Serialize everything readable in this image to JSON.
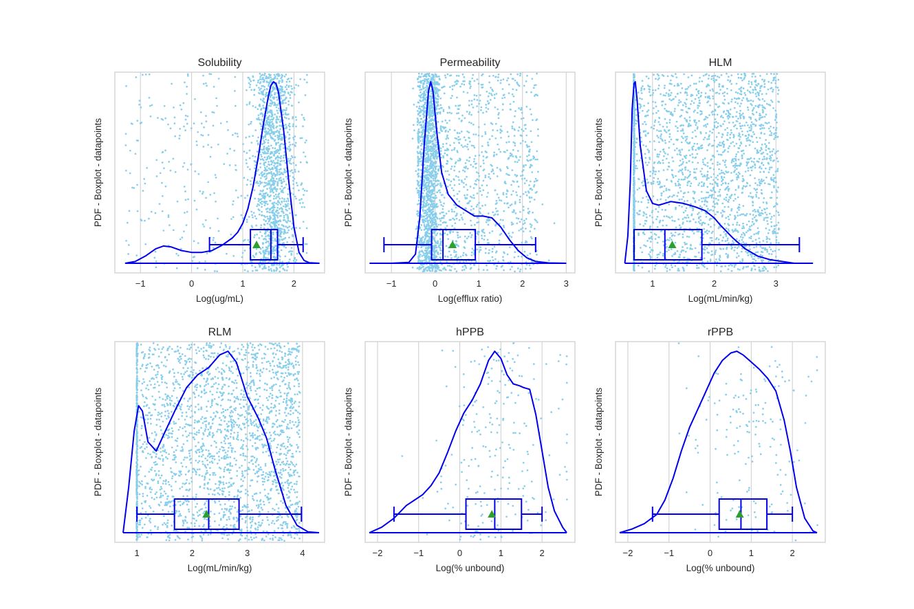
{
  "figure": {
    "background": "#ffffff"
  },
  "style": {
    "curve_color": "#0000ee",
    "box_color": "#0000ee",
    "points_color": "#87ceeb",
    "mean_marker_color": "#2ca02c",
    "grid_color": "#cccccc",
    "frame_color": "#cccccc"
  },
  "chart_data": [
    {
      "type": "density-box-strip",
      "title": "Solubility",
      "xlabel": "Log(ug/mL)",
      "ylabel": "PDF - Boxplot - datapoints",
      "xlim": [
        -1.5,
        2.6
      ],
      "xticks": [
        -1,
        0,
        1,
        2
      ],
      "xtick_labels": [
        "−1",
        "0",
        "1",
        "2"
      ],
      "points": {
        "n": 1700,
        "model": "skew_high",
        "center": 1.6,
        "spread": 0.45,
        "tail_min": -1.3,
        "tail_max": 2.25,
        "tail_frac": 0.2,
        "clip": [
          -1.3,
          2.25
        ]
      },
      "box": {
        "whisker_low": 0.35,
        "q1": 1.15,
        "median": 1.55,
        "q3": 1.68,
        "whisker_high": 2.18,
        "mean": 1.27
      },
      "pdf": {
        "x": [
          -1.3,
          -1.1,
          -0.9,
          -0.7,
          -0.55,
          -0.4,
          -0.2,
          0.0,
          0.2,
          0.4,
          0.6,
          0.8,
          0.9,
          1.0,
          1.1,
          1.2,
          1.3,
          1.4,
          1.5,
          1.55,
          1.6,
          1.65,
          1.7,
          1.8,
          1.9,
          2.0,
          2.1,
          2.2,
          2.3,
          2.5
        ],
        "y": [
          0.0,
          0.01,
          0.04,
          0.08,
          0.095,
          0.09,
          0.07,
          0.06,
          0.06,
          0.07,
          0.1,
          0.14,
          0.17,
          0.22,
          0.3,
          0.42,
          0.58,
          0.76,
          0.92,
          0.98,
          1.0,
          0.99,
          0.94,
          0.73,
          0.45,
          0.2,
          0.06,
          0.015,
          0.003,
          0.0
        ]
      }
    },
    {
      "type": "density-box-strip",
      "title": "Permeability",
      "xlabel": "Log(efflux ratio)",
      "ylabel": "PDF - Boxplot - datapoints",
      "xlim": [
        -1.6,
        3.2
      ],
      "xticks": [
        -1,
        0,
        1,
        2,
        3
      ],
      "xtick_labels": [
        "−1",
        "0",
        "1",
        "2",
        "3"
      ],
      "points": {
        "n": 2600,
        "model": "peak_low",
        "center": -0.12,
        "spread": 0.12,
        "tail_min": -0.4,
        "tail_max": 2.35,
        "tail_frac": 0.55,
        "clip": [
          -1.2,
          2.8
        ]
      },
      "box": {
        "whisker_low": -1.17,
        "q1": -0.08,
        "median": 0.18,
        "q3": 0.92,
        "whisker_high": 2.3,
        "mean": 0.4
      },
      "pdf": {
        "x": [
          -1.5,
          -1.0,
          -0.6,
          -0.45,
          -0.35,
          -0.25,
          -0.15,
          -0.1,
          -0.05,
          0.05,
          0.15,
          0.3,
          0.5,
          0.7,
          0.9,
          1.1,
          1.3,
          1.5,
          1.7,
          1.9,
          2.1,
          2.3,
          2.6,
          3.0
        ],
        "y": [
          0.0,
          0.0,
          0.005,
          0.05,
          0.25,
          0.65,
          0.95,
          1.0,
          0.95,
          0.7,
          0.5,
          0.38,
          0.32,
          0.29,
          0.26,
          0.26,
          0.25,
          0.2,
          0.13,
          0.07,
          0.03,
          0.01,
          0.002,
          0.0
        ]
      }
    },
    {
      "type": "density-box-strip",
      "title": "HLM",
      "xlabel": "Log(mL/min/kg)",
      "ylabel": "PDF - Boxplot - datapoints",
      "xlim": [
        0.4,
        3.8
      ],
      "xticks": [
        1,
        2,
        3
      ],
      "xtick_labels": [
        "1",
        "2",
        "3"
      ],
      "points": {
        "n": 2600,
        "model": "wall_low",
        "wall": 0.7,
        "wall_frac": 0.22,
        "tail_min": 0.7,
        "tail_max": 3.05,
        "clip": [
          0.7,
          3.4
        ]
      },
      "box": {
        "whisker_low": 0.7,
        "q1": 0.7,
        "median": 1.2,
        "q3": 1.8,
        "whisker_high": 3.38,
        "mean": 1.32
      },
      "pdf": {
        "x": [
          0.55,
          0.6,
          0.64,
          0.67,
          0.7,
          0.72,
          0.75,
          0.8,
          0.9,
          1.0,
          1.1,
          1.3,
          1.5,
          1.7,
          1.85,
          2.0,
          2.1,
          2.3,
          2.5,
          2.7,
          2.9,
          3.1,
          3.3,
          3.6
        ],
        "y": [
          0.0,
          0.15,
          0.45,
          0.85,
          0.99,
          1.0,
          0.9,
          0.65,
          0.4,
          0.33,
          0.32,
          0.34,
          0.33,
          0.31,
          0.29,
          0.25,
          0.21,
          0.14,
          0.08,
          0.04,
          0.02,
          0.01,
          0.0,
          0.0
        ]
      }
    },
    {
      "type": "density-box-strip",
      "title": "RLM",
      "xlabel": "Log(mL/min/kg)",
      "ylabel": "PDF - Boxplot - datapoints",
      "xlim": [
        0.6,
        4.4
      ],
      "xticks": [
        1,
        2,
        3,
        4
      ],
      "xtick_labels": [
        "1",
        "2",
        "3",
        "4"
      ],
      "points": {
        "n": 2600,
        "model": "wall_low",
        "wall": 1.0,
        "wall_frac": 0.12,
        "tail_min": 1.0,
        "tail_max": 3.95,
        "clip": [
          1.0,
          4.0
        ]
      },
      "box": {
        "whisker_low": 1.0,
        "q1": 1.68,
        "median": 2.3,
        "q3": 2.85,
        "whisker_high": 3.98,
        "mean": 2.26
      },
      "pdf": {
        "x": [
          0.75,
          0.85,
          0.95,
          1.03,
          1.1,
          1.2,
          1.35,
          1.5,
          1.7,
          1.9,
          2.1,
          2.3,
          2.5,
          2.65,
          2.8,
          3.0,
          3.2,
          3.35,
          3.5,
          3.7,
          3.9,
          4.1,
          4.3
        ],
        "y": [
          0.0,
          0.25,
          0.56,
          0.7,
          0.67,
          0.5,
          0.45,
          0.55,
          0.68,
          0.8,
          0.87,
          0.91,
          0.98,
          1.0,
          0.94,
          0.75,
          0.63,
          0.52,
          0.35,
          0.15,
          0.04,
          0.005,
          0.0
        ]
      }
    },
    {
      "type": "density-box-strip",
      "title": "hPPB",
      "xlabel": "Log(% unbound)",
      "ylabel": "PDF - Boxplot - datapoints",
      "xlim": [
        -2.3,
        2.8
      ],
      "xticks": [
        -2,
        -1,
        0,
        1,
        2
      ],
      "xtick_labels": [
        "−2",
        "−1",
        "0",
        "1",
        "2"
      ],
      "points": {
        "n": 230,
        "model": "sparse",
        "center": 0.9,
        "spread": 0.8,
        "clip": [
          -2.1,
          2.6
        ]
      },
      "box": {
        "whisker_low": -1.6,
        "q1": 0.15,
        "median": 0.85,
        "q3": 1.5,
        "whisker_high": 2.0,
        "mean": 0.78
      },
      "pdf": {
        "x": [
          -2.2,
          -1.9,
          -1.6,
          -1.3,
          -1.1,
          -0.9,
          -0.7,
          -0.5,
          -0.3,
          -0.1,
          0.1,
          0.3,
          0.5,
          0.7,
          0.85,
          1.0,
          1.15,
          1.3,
          1.45,
          1.55,
          1.7,
          1.85,
          2.0,
          2.15,
          2.3,
          2.5,
          2.6
        ],
        "y": [
          0.0,
          0.03,
          0.08,
          0.15,
          0.18,
          0.21,
          0.26,
          0.33,
          0.44,
          0.56,
          0.66,
          0.73,
          0.82,
          0.95,
          1.0,
          0.96,
          0.87,
          0.82,
          0.81,
          0.8,
          0.79,
          0.65,
          0.45,
          0.25,
          0.12,
          0.03,
          0.0
        ]
      }
    },
    {
      "type": "density-box-strip",
      "title": "rPPB",
      "xlabel": "Log(% unbound)",
      "ylabel": "PDF - Boxplot - datapoints",
      "xlim": [
        -2.3,
        2.8
      ],
      "xticks": [
        -2,
        -1,
        0,
        1,
        2
      ],
      "xtick_labels": [
        "−2",
        "−1",
        "0",
        "1",
        "2"
      ],
      "points": {
        "n": 170,
        "model": "sparse",
        "center": 0.9,
        "spread": 0.75,
        "clip": [
          -2.0,
          2.6
        ]
      },
      "box": {
        "whisker_low": -1.4,
        "q1": 0.22,
        "median": 0.75,
        "q3": 1.38,
        "whisker_high": 2.0,
        "mean": 0.72
      },
      "pdf": {
        "x": [
          -2.2,
          -1.9,
          -1.6,
          -1.3,
          -1.1,
          -0.9,
          -0.7,
          -0.5,
          -0.3,
          -0.1,
          0.1,
          0.3,
          0.5,
          0.65,
          0.8,
          1.0,
          1.2,
          1.4,
          1.6,
          1.8,
          1.95,
          2.1,
          2.3,
          2.5,
          2.6
        ],
        "y": [
          0.0,
          0.02,
          0.05,
          0.1,
          0.18,
          0.3,
          0.45,
          0.58,
          0.68,
          0.78,
          0.88,
          0.95,
          0.99,
          1.0,
          0.98,
          0.94,
          0.9,
          0.85,
          0.78,
          0.62,
          0.45,
          0.25,
          0.08,
          0.01,
          0.0
        ]
      }
    }
  ]
}
